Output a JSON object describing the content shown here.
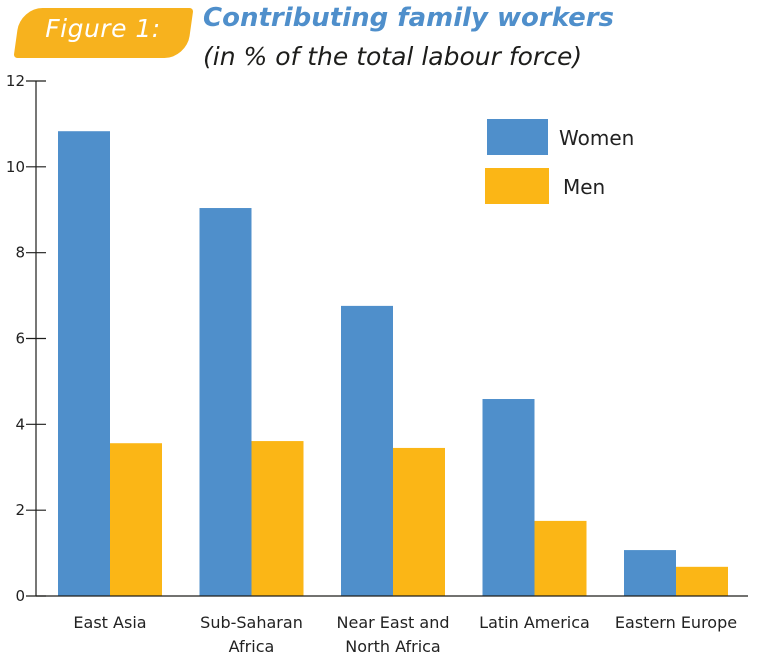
{
  "figure_label": "Figure 1:",
  "colors": {
    "women": "#4f8fcb",
    "men": "#fbb616",
    "badge": "#f7b21e",
    "title": "#4f8fcb"
  },
  "chart_data": {
    "type": "bar",
    "title": "Contributing family workers",
    "subtitle": "(in % of the total labour force)",
    "xlabel": "",
    "ylabel": "",
    "ylim": [
      0,
      12
    ],
    "yticks": [
      0,
      2,
      4,
      6,
      8,
      10,
      12
    ],
    "grid": false,
    "legend_position": "top-right",
    "categories": [
      [
        "East Asia"
      ],
      [
        "Sub-Saharan",
        "Africa"
      ],
      [
        "Near East and",
        "North Africa"
      ],
      [
        "Latin America"
      ],
      [
        "Eastern Europe"
      ]
    ],
    "series": [
      {
        "name": "Women",
        "values": [
          10.83,
          9.04,
          6.76,
          4.59,
          1.07
        ]
      },
      {
        "name": "Men",
        "values": [
          3.56,
          3.61,
          3.45,
          1.75,
          0.68
        ]
      }
    ]
  }
}
